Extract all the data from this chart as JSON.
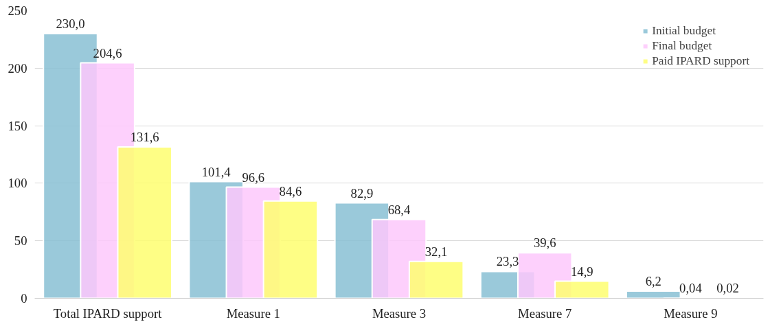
{
  "chart_data": {
    "type": "bar",
    "categories": [
      "Total IPARD support",
      "Measure 1",
      "Measure 3",
      "Measure 7",
      "Measure 9"
    ],
    "series": [
      {
        "name": "Initial budget",
        "color": "#88bfd4",
        "values": [
          230.0,
          101.4,
          82.9,
          23.3,
          6.2
        ],
        "value_labels": [
          "230,0",
          "101,4",
          "82,9",
          "23,3",
          "6,2"
        ]
      },
      {
        "name": "Final budget",
        "color": "#fdc8fc",
        "values": [
          204.6,
          96.6,
          68.4,
          39.6,
          0.04
        ],
        "value_labels": [
          "204,6",
          "96,6",
          "68,4",
          "39,6",
          "0,04"
        ]
      },
      {
        "name": "Paid IPARD support",
        "color": "#fefe70",
        "values": [
          131.6,
          84.6,
          32.1,
          14.9,
          0.02
        ],
        "value_labels": [
          "131,6",
          "84,6",
          "32,1",
          "14,9",
          "0,02"
        ]
      }
    ],
    "ylim": [
      0,
      250
    ],
    "yticks": [
      0,
      50,
      100,
      150,
      200,
      250
    ],
    "grid": "y",
    "legend": "top right"
  }
}
